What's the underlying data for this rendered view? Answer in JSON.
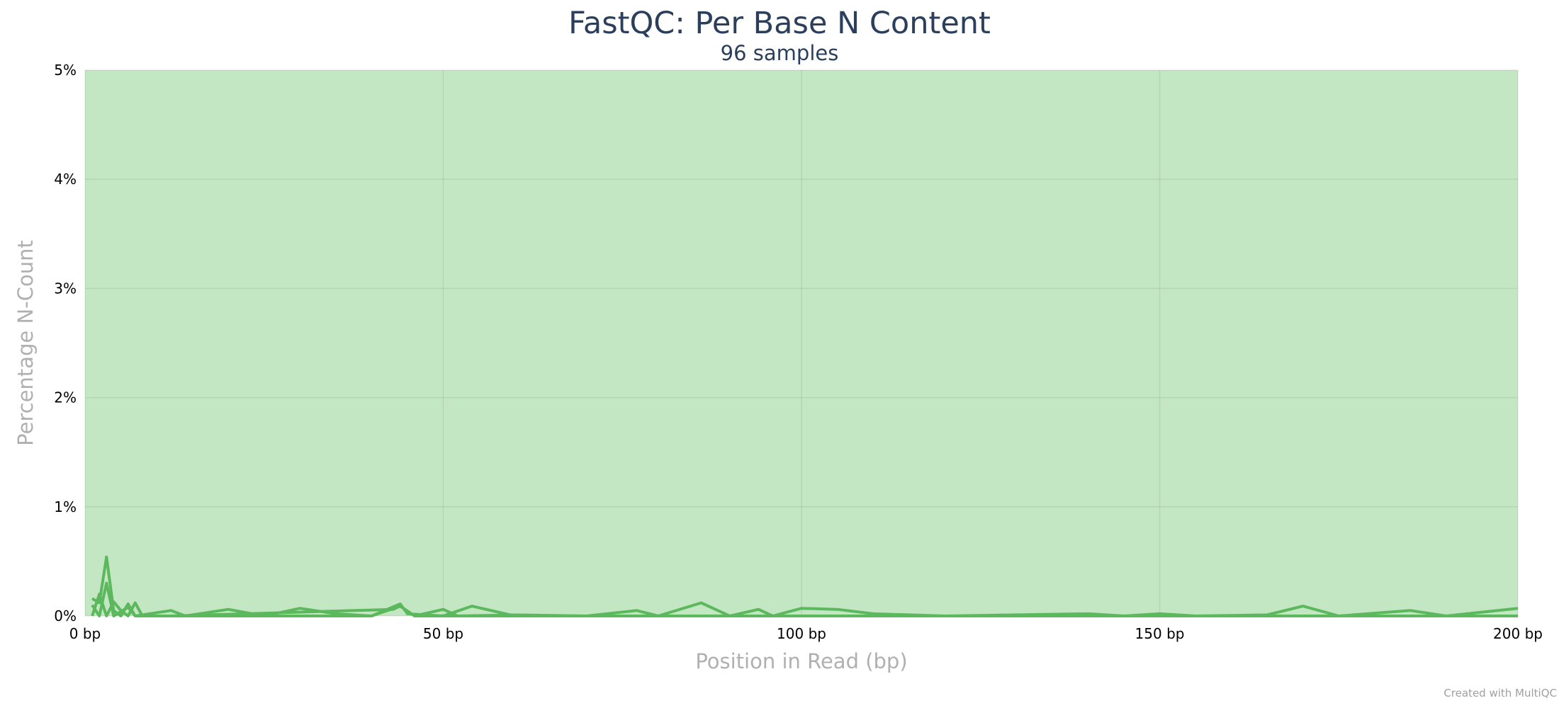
{
  "title": "FastQC: Per Base N Content",
  "subtitle": "96 samples",
  "credit": "Created with MultiQC",
  "chart_data": {
    "type": "line",
    "title": "FastQC: Per Base N Content",
    "subtitle": "96 samples",
    "xlabel": "Position in Read (bp)",
    "ylabel": "Percentage N-Count",
    "xlim": [
      0,
      200
    ],
    "ylim": [
      0,
      5
    ],
    "x_ticks": [
      {
        "value": 0,
        "label": "0 bp"
      },
      {
        "value": 50,
        "label": "50 bp"
      },
      {
        "value": 100,
        "label": "100 bp"
      },
      {
        "value": 150,
        "label": "150 bp"
      },
      {
        "value": 200,
        "label": "200 bp"
      }
    ],
    "y_ticks": [
      {
        "value": 0,
        "label": "0%"
      },
      {
        "value": 1,
        "label": "1%"
      },
      {
        "value": 2,
        "label": "2%"
      },
      {
        "value": 3,
        "label": "3%"
      },
      {
        "value": 4,
        "label": "4%"
      },
      {
        "value": 5,
        "label": "5%"
      }
    ],
    "grid": true,
    "background_band": {
      "from": 0,
      "to": 5,
      "color": "#c3e6c3",
      "status": "pass"
    },
    "line_color": "#5cb85c",
    "series": [
      {
        "points": [
          [
            1,
            0.16
          ],
          [
            2,
            0.12
          ],
          [
            3,
            0.54
          ],
          [
            4,
            0.05
          ],
          [
            5,
            0.0
          ],
          [
            6,
            0.11
          ],
          [
            7,
            0.0
          ],
          [
            12,
            0.05
          ],
          [
            14,
            0.0
          ],
          [
            20,
            0.06
          ],
          [
            25,
            0.0
          ],
          [
            30,
            0.07
          ],
          [
            35,
            0.02
          ],
          [
            40,
            0.0
          ],
          [
            44,
            0.11
          ],
          [
            45,
            0.02
          ],
          [
            50,
            0.0
          ],
          [
            54,
            0.09
          ],
          [
            60,
            0.0
          ],
          [
            70,
            0.0
          ],
          [
            77,
            0.05
          ],
          [
            80,
            0.0
          ],
          [
            86,
            0.12
          ],
          [
            90,
            0.0
          ],
          [
            94,
            0.06
          ],
          [
            96,
            0.0
          ],
          [
            100,
            0.07
          ],
          [
            105,
            0.06
          ],
          [
            110,
            0.02
          ],
          [
            120,
            0.0
          ],
          [
            140,
            0.02
          ],
          [
            145,
            0.0
          ],
          [
            150,
            0.02
          ],
          [
            155,
            0.0
          ],
          [
            165,
            0.01
          ],
          [
            170,
            0.09
          ],
          [
            175,
            0.0
          ],
          [
            185,
            0.05
          ],
          [
            190,
            0.0
          ],
          [
            200,
            0.07
          ]
        ]
      },
      {
        "points": [
          [
            1,
            0.0
          ],
          [
            2,
            0.2
          ],
          [
            3,
            0.0
          ],
          [
            4,
            0.13
          ],
          [
            5,
            0.05
          ],
          [
            6,
            0.0
          ],
          [
            7,
            0.12
          ],
          [
            8,
            0.0
          ],
          [
            12,
            0.0
          ],
          [
            43,
            0.06
          ],
          [
            44,
            0.09
          ],
          [
            46,
            0.0
          ],
          [
            50,
            0.06
          ],
          [
            52,
            0.0
          ],
          [
            60,
            0.01
          ],
          [
            70,
            0.0
          ],
          [
            100,
            0.0
          ],
          [
            130,
            0.0
          ],
          [
            150,
            0.0
          ],
          [
            200,
            0.0
          ]
        ]
      },
      {
        "points": [
          [
            1,
            0.1
          ],
          [
            2,
            0.0
          ],
          [
            3,
            0.3
          ],
          [
            4,
            0.0
          ],
          [
            6,
            0.08
          ],
          [
            7,
            0.0
          ],
          [
            10,
            0.0
          ],
          [
            40,
            0.0
          ],
          [
            44,
            0.09
          ],
          [
            46,
            0.0
          ],
          [
            200,
            0.0
          ]
        ]
      }
    ]
  }
}
